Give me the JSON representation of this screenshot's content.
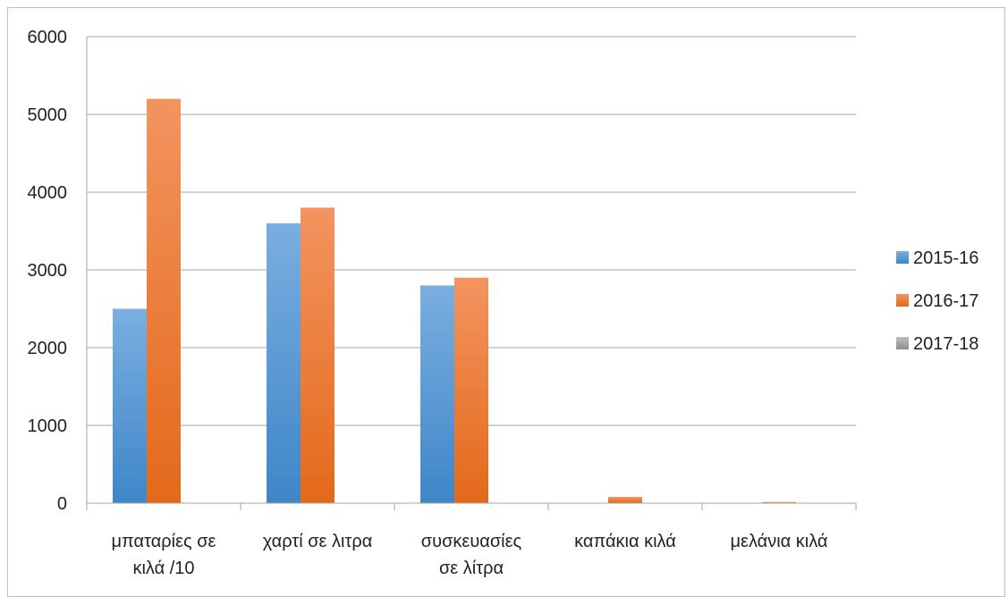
{
  "chart_data": {
    "type": "bar",
    "categories": [
      [
        "μπαταρίες σε",
        "κιλά /10"
      ],
      [
        "χαρτί σε λιτρα"
      ],
      [
        "συσκευασίες",
        "σε λίτρα"
      ],
      [
        "καπάκια κιλά"
      ],
      [
        "μελάνια κιλά"
      ]
    ],
    "series": [
      {
        "name": "2015-16",
        "color": "#5b9bd5",
        "values": [
          2500,
          3600,
          2800,
          0,
          0
        ]
      },
      {
        "name": "2016-17",
        "color": "#ed7d31",
        "values": [
          5200,
          3800,
          2900,
          80,
          15
        ]
      },
      {
        "name": "2017-18",
        "color": "#a5a5a5",
        "values": [
          0,
          0,
          0,
          0,
          0
        ]
      }
    ],
    "ylim": [
      0,
      6000
    ],
    "yticks": [
      0,
      1000,
      2000,
      3000,
      4000,
      5000,
      6000
    ],
    "grid": true,
    "legend": "right"
  }
}
